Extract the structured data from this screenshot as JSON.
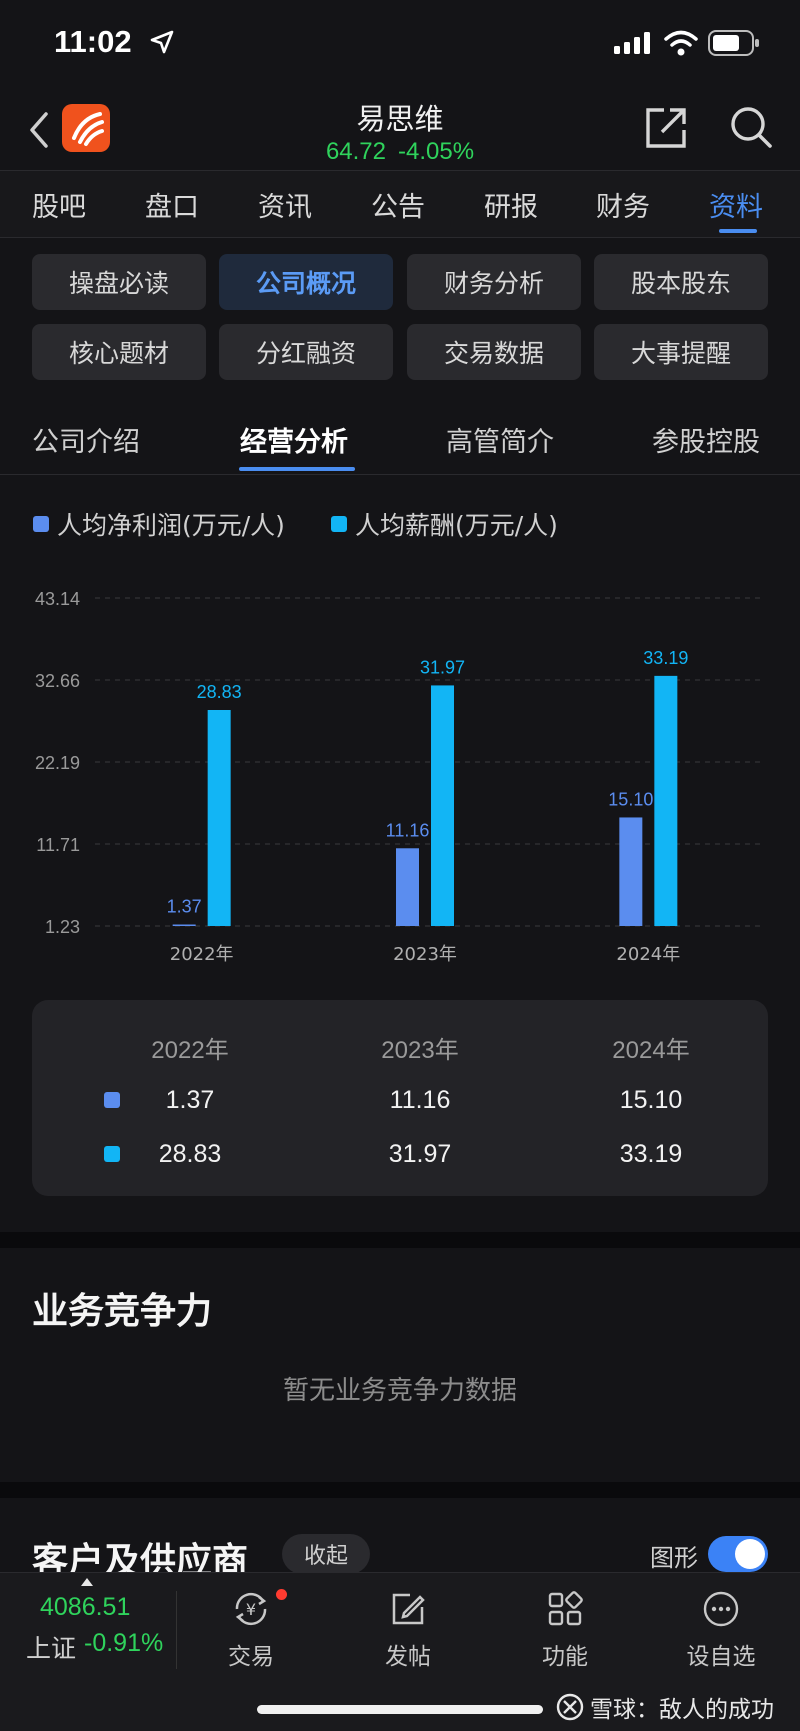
{
  "status_bar": {
    "time": "11:02"
  },
  "header": {
    "stock_name": "易思维",
    "price": "64.72",
    "change_pct": "-4.05%"
  },
  "top_tabs": [
    "股吧",
    "盘口",
    "资讯",
    "公告",
    "研报",
    "财务",
    "资料"
  ],
  "active_top_tab": "资料",
  "chips": [
    [
      "操盘必读",
      "公司概况",
      "财务分析",
      "股本股东"
    ],
    [
      "核心题材",
      "分红融资",
      "交易数据",
      "大事提醒"
    ]
  ],
  "active_chip": "公司概况",
  "sub_tabs": [
    "公司介绍",
    "经营分析",
    "高管简介",
    "参股控股"
  ],
  "active_sub_tab": "经营分析",
  "colors": {
    "accent": "#4a8df0",
    "rise_green": "#2fd35c",
    "series_profit": "#5b8def",
    "series_salary": "#12b5f5"
  },
  "chart_data": {
    "type": "bar",
    "categories": [
      "2022年",
      "2023年",
      "2024年"
    ],
    "series": [
      {
        "name": "人均净利润(万元/人)",
        "values": [
          1.37,
          11.16,
          15.1
        ],
        "labels": [
          "1.37",
          "11.16",
          "15.10"
        ],
        "color": "#5b8def"
      },
      {
        "name": "人均薪酬(万元/人)",
        "values": [
          28.83,
          31.97,
          33.19
        ],
        "labels": [
          "28.83",
          "31.97",
          "33.19"
        ],
        "color": "#12b5f5"
      }
    ],
    "yticks": [
      "43.14",
      "32.66",
      "22.19",
      "11.71",
      "1.23"
    ],
    "ylim": [
      1.23,
      43.14
    ],
    "grid": true,
    "legend": "top-left"
  },
  "table": {
    "headers": [
      "2022年",
      "2023年",
      "2024年"
    ],
    "rows": [
      [
        "1.37",
        "11.16",
        "15.10"
      ],
      [
        "28.83",
        "31.97",
        "33.19"
      ]
    ]
  },
  "sections": {
    "competitiveness_title": "业务竞争力",
    "competitiveness_empty": "暂无业务竞争力数据",
    "customers_title": "客户及供应商",
    "collapse_label": "收起",
    "graph_toggle_label": "图形",
    "graph_toggle_on": true
  },
  "bottom_bar": {
    "index_value": "4086.51",
    "index_name": "上证",
    "index_change": "-0.91%",
    "nav": [
      {
        "label": "交易",
        "icon": "trade-icon"
      },
      {
        "label": "发帖",
        "icon": "edit-icon"
      },
      {
        "label": "功能",
        "icon": "grid-icon"
      },
      {
        "label": "设自选",
        "icon": "more-icon"
      }
    ]
  },
  "watermark": "雪球：敌人的成功"
}
